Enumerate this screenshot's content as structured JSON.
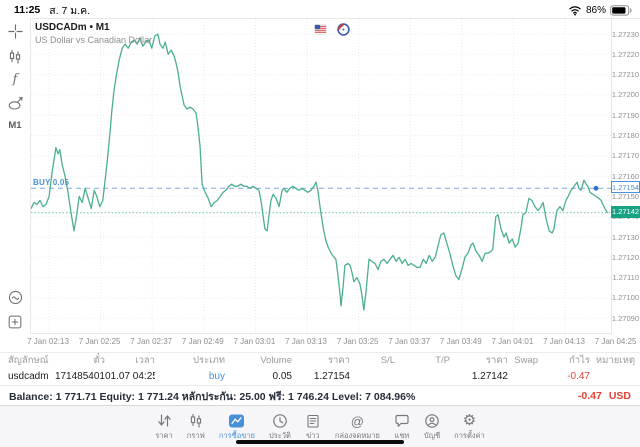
{
  "status_bar": {
    "time": "11:25",
    "date": "ส. 7 ม.ค.",
    "battery": "86%"
  },
  "chart": {
    "symbol": "USDCADm • M1",
    "description": "US Dollar vs Canadian Dollar",
    "timeframe_button": "M1",
    "buy_line_label": "BUY 0.05",
    "ask_tag": "1.27154",
    "bid_tag": "1.27142",
    "line_color": "#4cae93",
    "ask_line_color": "#7fa9e0",
    "bid_line_color": "#8fd0bd",
    "bid_badge_color": "#17a283",
    "ask_tag_color": "#4a90d8",
    "price_axis": [
      "1.27230",
      "1.27220",
      "1.27210",
      "1.27200",
      "1.27190",
      "1.27180",
      "1.27170",
      "1.27160",
      "1.27150",
      "1.27140",
      "1.27130",
      "1.27120",
      "1.27110",
      "1.27100",
      "1.27090"
    ],
    "time_axis": [
      "7 Jan 02:13",
      "7 Jan 02:25",
      "7 Jan 02:37",
      "7 Jan 02:49",
      "7 Jan 03:01",
      "7 Jan 03:13",
      "7 Jan 03:25",
      "7 Jan 03:37",
      "7 Jan 03:49",
      "7 Jan 04:01",
      "7 Jan 04:13",
      "7 Jan 04:25"
    ]
  },
  "chart_data": {
    "type": "line",
    "title": "USDCADm M1",
    "x_unit": "minutes from chart left edge (~02:09)",
    "x_ticks": [
      "02:13",
      "02:25",
      "02:37",
      "02:49",
      "03:01",
      "03:13",
      "03:25",
      "03:37",
      "03:49",
      "04:01",
      "04:13",
      "04:25"
    ],
    "ylim": [
      1.27085,
      1.272375
    ],
    "y_tick_step": 0.0001,
    "levels": {
      "buy_position_price": 1.27154,
      "current_bid": 1.27142
    },
    "series": [
      {
        "name": "USDCADm close",
        "points": [
          [
            0,
            1.27144
          ],
          [
            0.7,
            1.27147
          ],
          [
            1.4,
            1.27146
          ],
          [
            2.1,
            1.27148
          ],
          [
            2.8,
            1.27145
          ],
          [
            3.5,
            1.27146
          ],
          [
            4.2,
            1.2715
          ],
          [
            4.9,
            1.27162
          ],
          [
            5.8,
            1.27174
          ],
          [
            6.3,
            1.27171
          ],
          [
            6.7,
            1.27173
          ],
          [
            7.2,
            1.27166
          ],
          [
            7.9,
            1.2716
          ],
          [
            8.6,
            1.27152
          ],
          [
            9.3,
            1.27142
          ],
          [
            10,
            1.27133
          ],
          [
            10.5,
            1.27139
          ],
          [
            11.2,
            1.2715
          ],
          [
            11.9,
            1.27147
          ],
          [
            12.6,
            1.27154
          ],
          [
            13.3,
            1.27149
          ],
          [
            14,
            1.27144
          ],
          [
            14.7,
            1.27153
          ],
          [
            15.3,
            1.2715
          ],
          [
            16,
            1.27145
          ],
          [
            16.7,
            1.27148
          ],
          [
            17.4,
            1.27161
          ],
          [
            17.9,
            1.27171
          ],
          [
            18.4,
            1.27182
          ],
          [
            18.8,
            1.27192
          ],
          [
            19.3,
            1.27202
          ],
          [
            19.8,
            1.27209
          ],
          [
            20.5,
            1.27217
          ],
          [
            21.2,
            1.27223
          ],
          [
            21.9,
            1.27225
          ],
          [
            22.6,
            1.27223
          ],
          [
            23.3,
            1.27226
          ],
          [
            24,
            1.27227
          ],
          [
            24.7,
            1.27225
          ],
          [
            25.3,
            1.27228
          ],
          [
            26,
            1.27224
          ],
          [
            26.7,
            1.27226
          ],
          [
            27.4,
            1.27227
          ],
          [
            28.1,
            1.27223
          ],
          [
            28.8,
            1.27229
          ],
          [
            29.5,
            1.2723
          ],
          [
            30,
            1.27225
          ],
          [
            30.7,
            1.27223
          ],
          [
            31.2,
            1.27226
          ],
          [
            31.9,
            1.2722
          ],
          [
            32.6,
            1.27222
          ],
          [
            33.3,
            1.27219
          ],
          [
            33.7,
            1.27216
          ],
          [
            34.2,
            1.27211
          ],
          [
            34.7,
            1.27204
          ],
          [
            35.1,
            1.272
          ],
          [
            35.6,
            1.27195
          ],
          [
            36.3,
            1.27193
          ],
          [
            37,
            1.27194
          ],
          [
            37.7,
            1.27193
          ],
          [
            38.4,
            1.27191
          ],
          [
            38.8,
            1.27185
          ],
          [
            39.3,
            1.27175
          ],
          [
            39.8,
            1.27156
          ],
          [
            40.5,
            1.27152
          ],
          [
            41.2,
            1.27149
          ],
          [
            41.9,
            1.27145
          ],
          [
            42.6,
            1.27147
          ],
          [
            43.3,
            1.27148
          ],
          [
            44,
            1.2715
          ],
          [
            44.7,
            1.27152
          ],
          [
            45.3,
            1.27153
          ],
          [
            46,
            1.27155
          ],
          [
            46.7,
            1.27156
          ],
          [
            47.4,
            1.27155
          ],
          [
            48.1,
            1.27155
          ],
          [
            48.8,
            1.27156
          ],
          [
            49.5,
            1.27155
          ],
          [
            50.2,
            1.27155
          ],
          [
            50.9,
            1.27154
          ],
          [
            51.6,
            1.27155
          ],
          [
            52.3,
            1.27154
          ],
          [
            53,
            1.27153
          ],
          [
            53.5,
            1.27148
          ],
          [
            54,
            1.2714
          ],
          [
            54.4,
            1.27134
          ],
          [
            54.9,
            1.27133
          ],
          [
            55.3,
            1.2714
          ],
          [
            55.8,
            1.27148
          ],
          [
            56.3,
            1.27151
          ],
          [
            57,
            1.27149
          ],
          [
            57.7,
            1.27145
          ],
          [
            58.4,
            1.27153
          ],
          [
            58.8,
            1.27154
          ],
          [
            59.5,
            1.27152
          ],
          [
            60.2,
            1.27154
          ],
          [
            60.9,
            1.27155
          ],
          [
            61.6,
            1.27154
          ],
          [
            62.3,
            1.27153
          ],
          [
            63,
            1.27154
          ],
          [
            63.7,
            1.27153
          ],
          [
            64.4,
            1.27152
          ],
          [
            65.1,
            1.27153
          ],
          [
            65.8,
            1.27155
          ],
          [
            66.3,
            1.27157
          ],
          [
            66.7,
            1.27153
          ],
          [
            67.2,
            1.27145
          ],
          [
            67.7,
            1.27138
          ],
          [
            68.1,
            1.27133
          ],
          [
            68.6,
            1.27128
          ],
          [
            69.1,
            1.27125
          ],
          [
            69.8,
            1.27122
          ],
          [
            70.5,
            1.2712
          ],
          [
            70.9,
            1.27119
          ],
          [
            71.4,
            1.27111
          ],
          [
            71.9,
            1.27101
          ],
          [
            72.1,
            1.27096
          ],
          [
            72.6,
            1.27106
          ],
          [
            73,
            1.27116
          ],
          [
            73.7,
            1.27117
          ],
          [
            74.2,
            1.27116
          ],
          [
            74.7,
            1.27112
          ],
          [
            75.1,
            1.27108
          ],
          [
            75.8,
            1.2711
          ],
          [
            76.5,
            1.27107
          ],
          [
            77,
            1.27101
          ],
          [
            77.4,
            1.27094
          ],
          [
            77.9,
            1.27103
          ],
          [
            78.6,
            1.27119
          ],
          [
            79.3,
            1.27118
          ],
          [
            80,
            1.27117
          ],
          [
            80.7,
            1.27114
          ],
          [
            81.4,
            1.27118
          ],
          [
            82.1,
            1.27119
          ],
          [
            82.8,
            1.27117
          ],
          [
            83.5,
            1.27119
          ],
          [
            84.2,
            1.27121
          ],
          [
            84.9,
            1.27118
          ],
          [
            85.6,
            1.2712
          ],
          [
            86.3,
            1.27117
          ],
          [
            87,
            1.27119
          ],
          [
            87.7,
            1.27116
          ],
          [
            88.4,
            1.27117
          ],
          [
            89.1,
            1.27116
          ],
          [
            89.8,
            1.27115
          ],
          [
            90.5,
            1.27115
          ],
          [
            91.2,
            1.27119
          ],
          [
            91.9,
            1.27117
          ],
          [
            92.6,
            1.27121
          ],
          [
            93.3,
            1.27118
          ],
          [
            94,
            1.2712
          ],
          [
            94.7,
            1.27126
          ],
          [
            95.3,
            1.27131
          ],
          [
            96,
            1.27132
          ],
          [
            96.7,
            1.27127
          ],
          [
            97.4,
            1.27122
          ],
          [
            98.1,
            1.27116
          ],
          [
            98.8,
            1.27111
          ],
          [
            99.5,
            1.27109
          ],
          [
            100.2,
            1.27114
          ],
          [
            100.9,
            1.2712
          ],
          [
            101.6,
            1.27122
          ],
          [
            102.3,
            1.27126
          ],
          [
            102.8,
            1.27127
          ],
          [
            103.5,
            1.27123
          ],
          [
            104.2,
            1.27121
          ],
          [
            104.9,
            1.27118
          ],
          [
            105.6,
            1.27122
          ],
          [
            106.3,
            1.27122
          ],
          [
            107,
            1.27123
          ],
          [
            107.4,
            1.27124
          ],
          [
            108.1,
            1.2714
          ],
          [
            108.6,
            1.27141
          ],
          [
            109.3,
            1.27134
          ],
          [
            110,
            1.2713
          ],
          [
            110.5,
            1.27132
          ],
          [
            111.2,
            1.27127
          ],
          [
            111.9,
            1.27129
          ],
          [
            112.6,
            1.27125
          ],
          [
            113.3,
            1.27127
          ],
          [
            114,
            1.27135
          ],
          [
            114.4,
            1.27141
          ],
          [
            115.1,
            1.27142
          ],
          [
            115.8,
            1.27149
          ],
          [
            116.5,
            1.27148
          ],
          [
            117.2,
            1.27145
          ],
          [
            117.9,
            1.27143
          ],
          [
            118.6,
            1.27145
          ],
          [
            119.1,
            1.27147
          ],
          [
            119.8,
            1.27139
          ],
          [
            120.5,
            1.27133
          ],
          [
            121.2,
            1.27132
          ],
          [
            121.6,
            1.27134
          ],
          [
            122.3,
            1.27143
          ],
          [
            123,
            1.27145
          ],
          [
            123.7,
            1.27143
          ],
          [
            124.4,
            1.27148
          ],
          [
            124.9,
            1.2715
          ],
          [
            125.6,
            1.27153
          ],
          [
            126.3,
            1.27155
          ],
          [
            127,
            1.27157
          ],
          [
            127.4,
            1.27154
          ],
          [
            127.9,
            1.27153
          ],
          [
            128.6,
            1.27158
          ],
          [
            129.1,
            1.27156
          ],
          [
            129.5,
            1.27155
          ],
          [
            130,
            1.27152
          ],
          [
            130.7,
            1.27151
          ],
          [
            131.4,
            1.2715
          ],
          [
            132.1,
            1.27149
          ],
          [
            132.6,
            1.27148
          ],
          [
            133,
            1.27146
          ],
          [
            133.5,
            1.27144
          ],
          [
            134,
            1.27142
          ]
        ]
      }
    ]
  },
  "positions_table": {
    "headers": [
      "สัญลักษณ์",
      "ตั๋ว",
      "เวลา",
      "ประเภท",
      "Volume",
      "ราคา",
      "S/L",
      "T/P",
      "ราคา",
      "Swap",
      "กำไร",
      "หมายเหตุ"
    ],
    "row": [
      "usdcadm",
      "171485401",
      "01.07 04:25",
      "buy",
      "0.05",
      "1.27154",
      "",
      "",
      "1.27142",
      "",
      "-0.47",
      ""
    ]
  },
  "account_summary": {
    "text": "Balance: 1 771.71 Equity: 1 771.24 หลักประกัน: 25.00 ฟรี: 1 746.24 Level: 7 084.96%",
    "profit": "-0.47",
    "currency": "USD"
  },
  "tab_bar": {
    "active_index": 2,
    "tabs": [
      {
        "label": "ราคา",
        "icon": "quotes-arrows-icon"
      },
      {
        "label": "กราฟ",
        "icon": "candlestick-chart-icon"
      },
      {
        "label": "การซื้อขาย",
        "icon": "trade-chart-icon"
      },
      {
        "label": "ประวัติ",
        "icon": "history-clock-icon"
      },
      {
        "label": "ข่าว",
        "icon": "news-icon"
      },
      {
        "label": "กล่องจดหมาย",
        "icon": "mailbox-at-icon"
      },
      {
        "label": "แชท",
        "icon": "chat-bubble-icon"
      },
      {
        "label": "บัญชี",
        "icon": "account-person-icon"
      },
      {
        "label": "การตั้งค่า",
        "icon": "settings-gear-icon"
      }
    ]
  }
}
